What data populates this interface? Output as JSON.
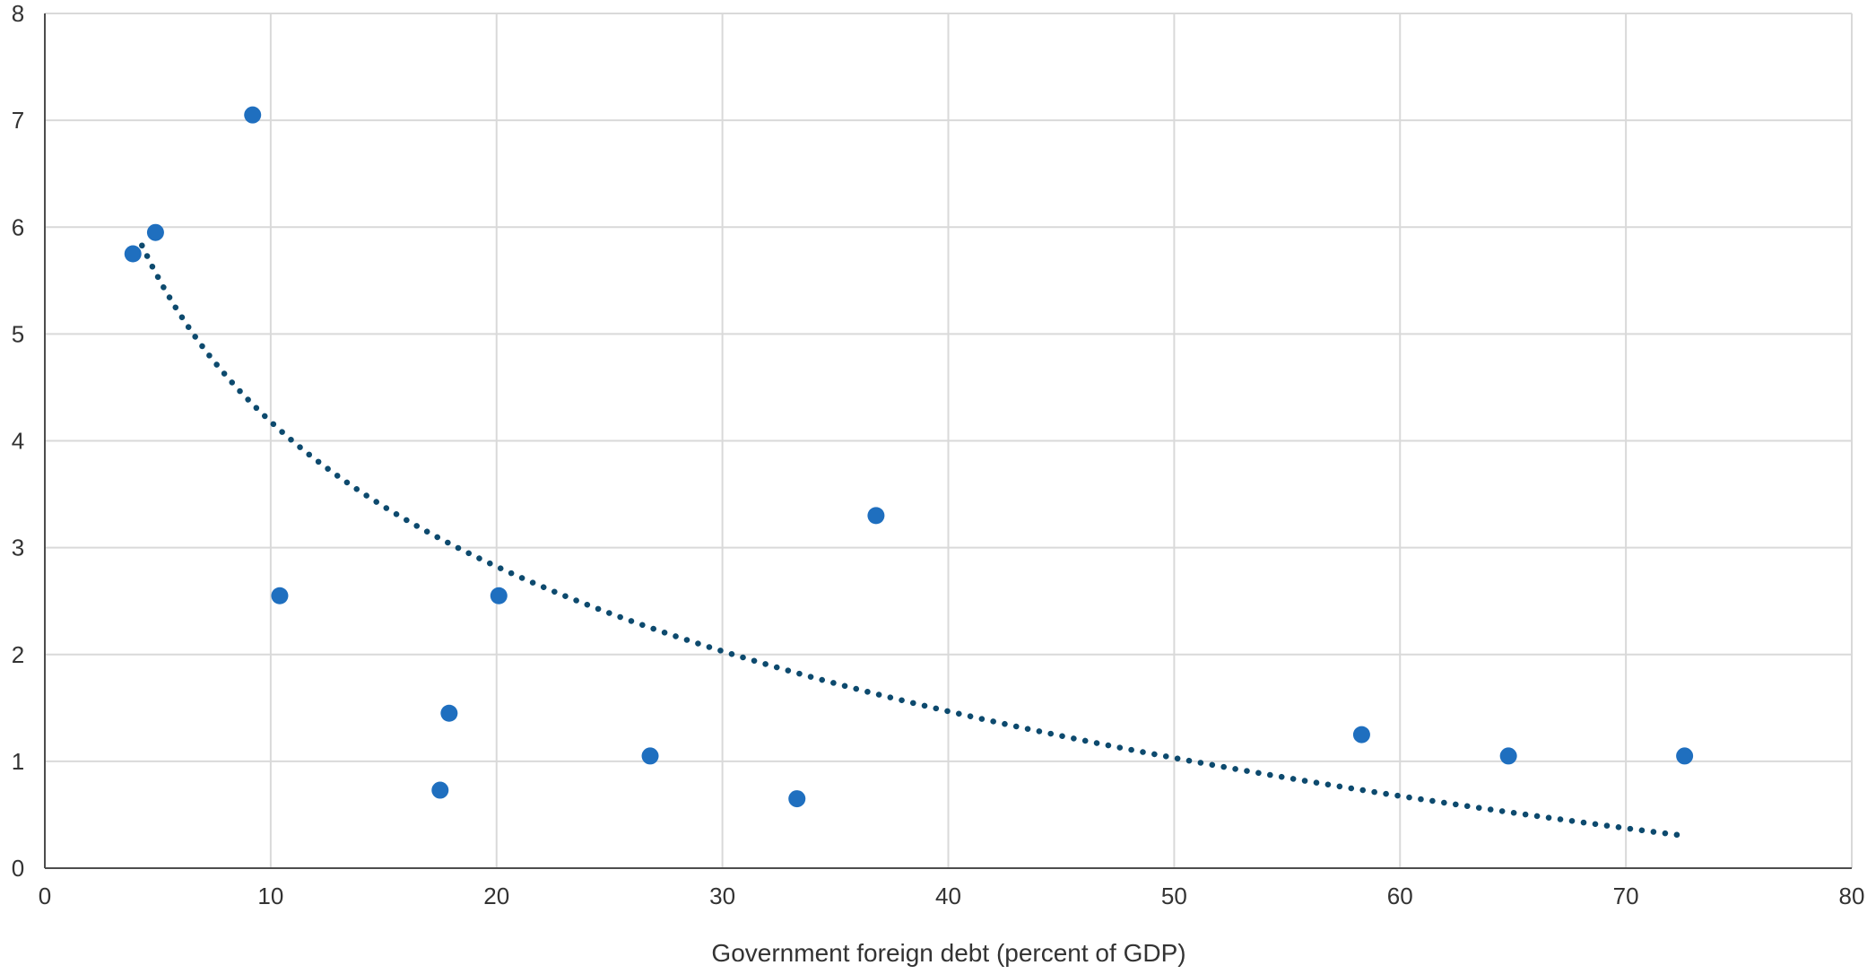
{
  "chart_data": {
    "type": "scatter",
    "title": "",
    "xlabel": "Government foreign debt (percent of GDP)",
    "ylabel": "",
    "xlim": [
      0,
      80
    ],
    "ylim": [
      0,
      8
    ],
    "xticks": [
      0,
      10,
      20,
      30,
      40,
      50,
      60,
      70,
      80
    ],
    "yticks": [
      0,
      1,
      2,
      3,
      4,
      5,
      6,
      7,
      8
    ],
    "grid": true,
    "legend": "none",
    "colors": {
      "points": "#1f6fbf",
      "trendline": "#0d4a6e",
      "grid": "#d9d9d9",
      "axis": "#4d4d4d"
    },
    "points": [
      {
        "x": 3.9,
        "y": 5.75
      },
      {
        "x": 4.9,
        "y": 5.95
      },
      {
        "x": 9.2,
        "y": 7.05
      },
      {
        "x": 10.4,
        "y": 2.55
      },
      {
        "x": 17.5,
        "y": 0.73
      },
      {
        "x": 17.9,
        "y": 1.45
      },
      {
        "x": 20.1,
        "y": 2.55
      },
      {
        "x": 26.8,
        "y": 1.05
      },
      {
        "x": 33.3,
        "y": 0.65
      },
      {
        "x": 36.8,
        "y": 3.3
      },
      {
        "x": 58.3,
        "y": 1.25
      },
      {
        "x": 64.8,
        "y": 1.05
      },
      {
        "x": 72.6,
        "y": 1.05
      }
    ],
    "trendline": {
      "type": "logarithmic",
      "style": "dotted",
      "x_range": [
        4.3,
        72.6
      ],
      "a": 8.68,
      "b": -1.955
    }
  }
}
